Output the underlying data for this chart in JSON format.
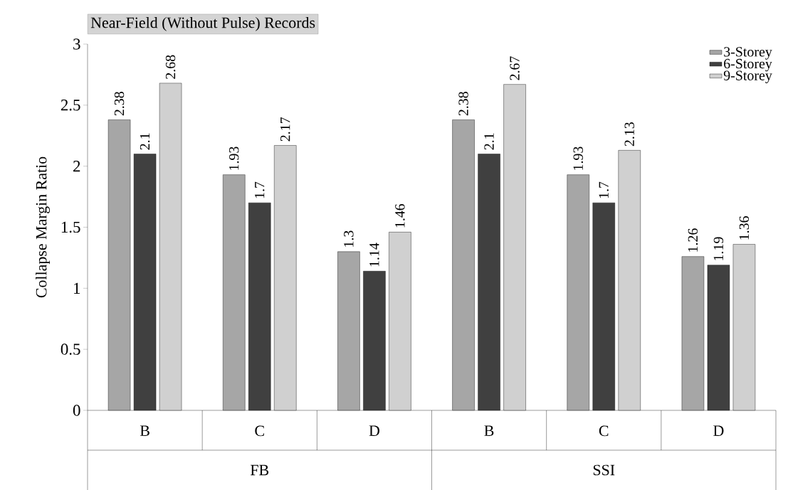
{
  "chart_data": {
    "type": "bar",
    "title": "Near-Field (Without Pulse) Records",
    "ylabel": "Collapse Margin Ratio",
    "categories": [
      "B",
      "C",
      "D",
      "B",
      "C",
      "D"
    ],
    "annotations": [
      "FB",
      "SSI"
    ],
    "series": [
      {
        "name": "3-Storey",
        "color": "#a6a6a6",
        "values": [
          2.38,
          1.93,
          1.3,
          2.38,
          1.93,
          1.26
        ]
      },
      {
        "name": "6-Storey",
        "color": "#404040",
        "values": [
          2.1,
          1.7,
          1.14,
          2.1,
          1.7,
          1.19
        ]
      },
      {
        "name": "9-Storey",
        "color": "#d0d0d0",
        "values": [
          2.68,
          2.17,
          1.46,
          2.67,
          2.13,
          1.36
        ]
      }
    ],
    "ylim": [
      0,
      3
    ],
    "yticks": [
      0,
      0.5,
      1,
      1.5,
      2,
      2.5,
      3
    ],
    "data_labels": true,
    "legend": "top right",
    "grid": false
  }
}
